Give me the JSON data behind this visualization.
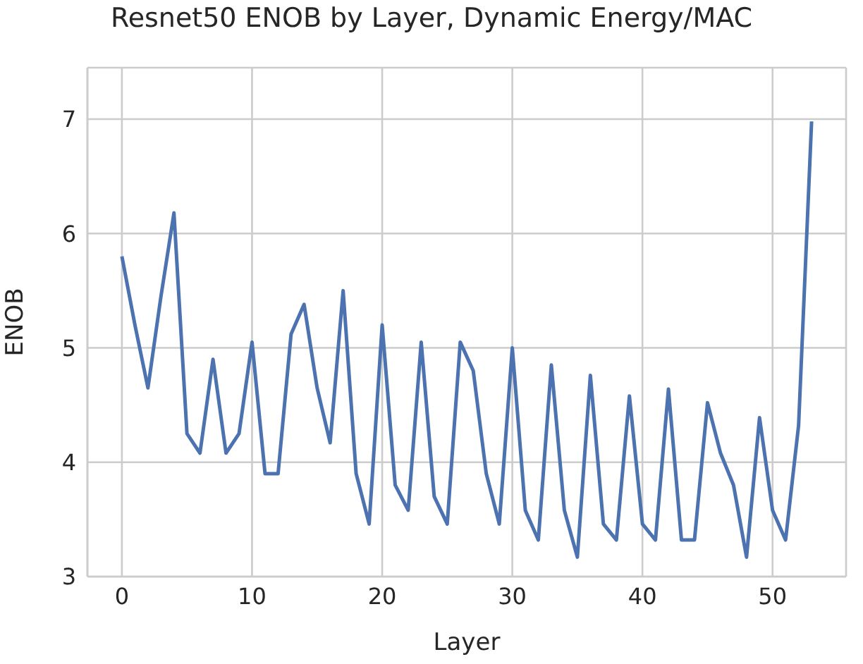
{
  "chart_data": {
    "type": "line",
    "title": "Resnet50 ENOB by Layer, Dynamic Energy/MAC",
    "xlabel": "Layer",
    "ylabel": "ENOB",
    "x": [
      0,
      1,
      2,
      3,
      4,
      5,
      6,
      7,
      8,
      9,
      10,
      11,
      12,
      13,
      14,
      15,
      16,
      17,
      18,
      19,
      20,
      21,
      22,
      23,
      24,
      25,
      26,
      27,
      28,
      29,
      30,
      31,
      32,
      33,
      34,
      35,
      36,
      37,
      38,
      39,
      40,
      41,
      42,
      43,
      44,
      45,
      46,
      47,
      48,
      49,
      50,
      51,
      52,
      53
    ],
    "series": [
      {
        "color": "#4c72b0",
        "values": [
          5.8,
          5.2,
          4.65,
          5.45,
          6.18,
          4.25,
          4.08,
          4.9,
          4.08,
          4.25,
          5.05,
          3.9,
          3.9,
          5.12,
          5.38,
          4.65,
          4.17,
          5.5,
          3.9,
          3.46,
          5.2,
          3.8,
          3.58,
          5.05,
          3.7,
          3.46,
          5.05,
          4.8,
          3.9,
          3.46,
          5.0,
          3.58,
          3.32,
          4.85,
          3.58,
          3.17,
          4.76,
          3.46,
          3.32,
          4.58,
          3.46,
          3.32,
          4.64,
          3.32,
          3.32,
          4.52,
          4.08,
          3.8,
          3.17,
          4.39,
          3.58,
          3.32,
          4.32,
          6.98
        ]
      }
    ],
    "xlim": [
      -2.65,
      55.65
    ],
    "ylim": [
      3,
      7.45
    ],
    "xticks": [
      0,
      10,
      20,
      30,
      40,
      50
    ],
    "yticks": [
      3,
      4,
      5,
      6,
      7
    ],
    "grid": true,
    "legend": false,
    "marker": "none",
    "line_style": "solid"
  }
}
